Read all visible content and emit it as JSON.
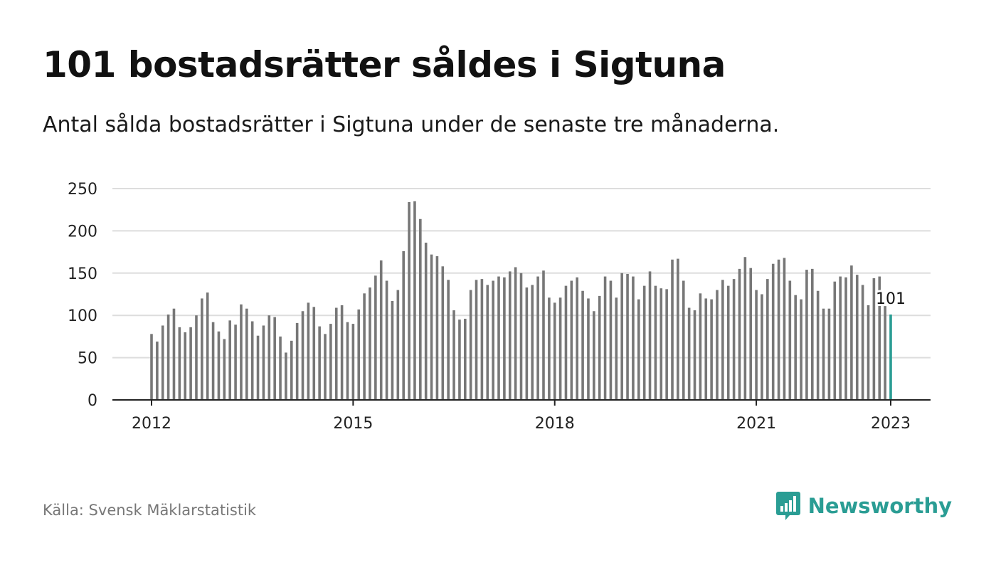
{
  "title": "101 bostadsrätter såldes i Sigtuna",
  "subtitle": "Antal sålda bostadsrätter i Sigtuna under de senaste tre månaderna.",
  "source": "Källa: Svensk Mäklarstatistik",
  "brand": {
    "name": "Newsworthy",
    "icon": "newsworthy-logo-icon"
  },
  "colors": {
    "bar": "#777777",
    "highlight": "#2a9d94",
    "grid": "#dddddd",
    "axis": "#222222",
    "brand": "#2a9d94"
  },
  "chart_data": {
    "type": "bar",
    "x_start": "2012-01",
    "x_end": "2023-01",
    "values": [
      78,
      69,
      88,
      101,
      108,
      86,
      80,
      86,
      100,
      120,
      127,
      92,
      81,
      72,
      94,
      89,
      113,
      108,
      93,
      76,
      88,
      100,
      98,
      75,
      56,
      70,
      91,
      105,
      115,
      110,
      87,
      78,
      90,
      109,
      112,
      92,
      90,
      107,
      126,
      133,
      147,
      165,
      141,
      117,
      130,
      176,
      234,
      235,
      214,
      186,
      172,
      170,
      158,
      142,
      106,
      95,
      96,
      130,
      142,
      143,
      136,
      141,
      146,
      145,
      152,
      157,
      150,
      133,
      136,
      146,
      153,
      121,
      115,
      121,
      135,
      141,
      145,
      129,
      120,
      105,
      123,
      146,
      141,
      121,
      150,
      149,
      146,
      119,
      135,
      152,
      135,
      132,
      131,
      166,
      167,
      141,
      109,
      106,
      126,
      120,
      119,
      130,
      142,
      135,
      143,
      155,
      169,
      156,
      130,
      125,
      143,
      161,
      166,
      168,
      141,
      124,
      119,
      154,
      155,
      129,
      108,
      108,
      140,
      146,
      145,
      159,
      148,
      136,
      112,
      144,
      146,
      111,
      101
    ],
    "highlight_last": true,
    "highlight_label": "101",
    "y_ticks": [
      0,
      50,
      100,
      150,
      200,
      250
    ],
    "x_ticks": [
      "2012",
      "2015",
      "2018",
      "2021",
      "2023"
    ],
    "x_tick_dates": [
      "2012-01",
      "2015-01",
      "2018-01",
      "2021-01",
      "2023-01"
    ],
    "ylim": [
      0,
      250
    ],
    "grid": true,
    "legend": "none"
  }
}
